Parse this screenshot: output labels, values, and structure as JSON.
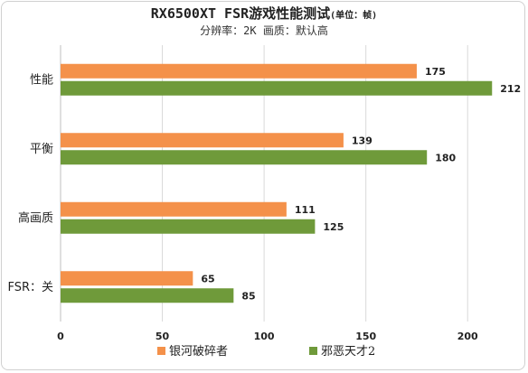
{
  "chart_data": {
    "type": "bar",
    "orientation": "horizontal",
    "title": "RX6500XT FSR游戏性能测试",
    "title_unit": "(单位：帧)",
    "subtitle": "分辨率：2K 画质：默认高",
    "categories": [
      "性能",
      "平衡",
      "高画质",
      "FSR：关"
    ],
    "series": [
      {
        "name": "银河破碎者",
        "color": "#f4914a",
        "values": [
          175,
          139,
          111,
          65
        ]
      },
      {
        "name": "邪恶天才2",
        "color": "#6f9a3a",
        "values": [
          212,
          180,
          125,
          85
        ]
      }
    ],
    "xlim": [
      0,
      215
    ],
    "xticks": [
      "0",
      "50",
      "100",
      "150",
      "200"
    ],
    "grid": true,
    "legend_position": "bottom"
  }
}
